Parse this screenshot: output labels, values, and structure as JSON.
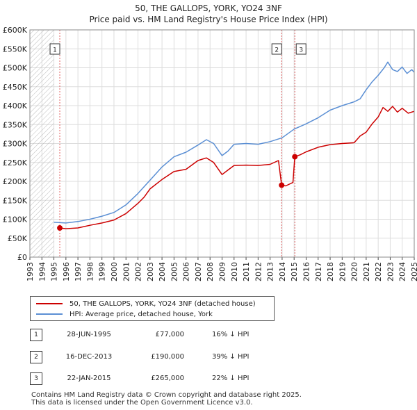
{
  "chart_data": {
    "type": "line",
    "title": "50, THE GALLOPS, YORK, YO24 3NF",
    "subtitle": "Price paid vs. HM Land Registry's House Price Index (HPI)",
    "xlim": [
      1993,
      2025
    ],
    "ylim": [
      0,
      600000
    ],
    "x_ticks": [
      1993,
      1994,
      1995,
      1996,
      1997,
      1998,
      1999,
      2000,
      2001,
      2002,
      2003,
      2004,
      2005,
      2006,
      2007,
      2008,
      2009,
      2010,
      2011,
      2012,
      2013,
      2014,
      2015,
      2016,
      2017,
      2018,
      2019,
      2020,
      2021,
      2022,
      2023,
      2024,
      2025
    ],
    "y_ticks": [
      0,
      50000,
      100000,
      150000,
      200000,
      250000,
      300000,
      350000,
      400000,
      450000,
      500000,
      550000,
      600000
    ],
    "y_tick_labels": [
      "£0",
      "£50K",
      "£100K",
      "£150K",
      "£200K",
      "£250K",
      "£300K",
      "£350K",
      "£400K",
      "£450K",
      "£500K",
      "£550K",
      "£600K"
    ],
    "series": [
      {
        "name": "50, THE GALLOPS, YORK, YO24 3NF (detached house)",
        "color": "#cc0000",
        "points": [
          [
            1995.49,
            77000
          ],
          [
            1996.0,
            75000
          ],
          [
            1997.0,
            77000
          ],
          [
            1998.0,
            84000
          ],
          [
            1999.0,
            90000
          ],
          [
            2000.0,
            98000
          ],
          [
            2001.0,
            115000
          ],
          [
            2002.0,
            142000
          ],
          [
            2002.5,
            158000
          ],
          [
            2003.0,
            180000
          ],
          [
            2004.0,
            205000
          ],
          [
            2005.0,
            226000
          ],
          [
            2006.0,
            232000
          ],
          [
            2007.0,
            255000
          ],
          [
            2007.7,
            262000
          ],
          [
            2008.3,
            250000
          ],
          [
            2009.0,
            218000
          ],
          [
            2009.5,
            230000
          ],
          [
            2010.0,
            242000
          ],
          [
            2011.0,
            243000
          ],
          [
            2012.0,
            242000
          ],
          [
            2013.0,
            245000
          ],
          [
            2013.7,
            255000
          ],
          [
            2013.96,
            190000
          ],
          [
            2014.3,
            188000
          ],
          [
            2014.9,
            197000
          ],
          [
            2015.06,
            265000
          ],
          [
            2015.5,
            270000
          ],
          [
            2016.0,
            278000
          ],
          [
            2017.0,
            290000
          ],
          [
            2018.0,
            297000
          ],
          [
            2019.0,
            300000
          ],
          [
            2020.0,
            302000
          ],
          [
            2020.5,
            320000
          ],
          [
            2021.0,
            330000
          ],
          [
            2021.5,
            352000
          ],
          [
            2022.0,
            370000
          ],
          [
            2022.4,
            395000
          ],
          [
            2022.8,
            385000
          ],
          [
            2023.2,
            398000
          ],
          [
            2023.6,
            383000
          ],
          [
            2024.0,
            393000
          ],
          [
            2024.5,
            380000
          ],
          [
            2025.0,
            385000
          ]
        ]
      },
      {
        "name": "HPI: Average price, detached house, York",
        "color": "#5b8fd4",
        "points": [
          [
            1995.0,
            92000
          ],
          [
            1996.0,
            90000
          ],
          [
            1997.0,
            94000
          ],
          [
            1998.0,
            100000
          ],
          [
            1999.0,
            108000
          ],
          [
            2000.0,
            118000
          ],
          [
            2001.0,
            138000
          ],
          [
            2002.0,
            168000
          ],
          [
            2003.0,
            203000
          ],
          [
            2004.0,
            238000
          ],
          [
            2005.0,
            265000
          ],
          [
            2006.0,
            277000
          ],
          [
            2007.0,
            296000
          ],
          [
            2007.7,
            310000
          ],
          [
            2008.3,
            300000
          ],
          [
            2009.0,
            268000
          ],
          [
            2009.5,
            280000
          ],
          [
            2010.0,
            298000
          ],
          [
            2011.0,
            300000
          ],
          [
            2012.0,
            298000
          ],
          [
            2013.0,
            305000
          ],
          [
            2014.0,
            315000
          ],
          [
            2015.0,
            338000
          ],
          [
            2016.0,
            352000
          ],
          [
            2017.0,
            368000
          ],
          [
            2018.0,
            388000
          ],
          [
            2019.0,
            400000
          ],
          [
            2020.0,
            410000
          ],
          [
            2020.5,
            418000
          ],
          [
            2021.0,
            442000
          ],
          [
            2021.5,
            463000
          ],
          [
            2022.0,
            480000
          ],
          [
            2022.5,
            500000
          ],
          [
            2022.8,
            515000
          ],
          [
            2023.2,
            495000
          ],
          [
            2023.6,
            490000
          ],
          [
            2024.0,
            502000
          ],
          [
            2024.4,
            485000
          ],
          [
            2024.8,
            495000
          ],
          [
            2025.0,
            488000
          ]
        ]
      }
    ],
    "transactions": [
      {
        "label": "1",
        "x": 1995.49,
        "value": 77000
      },
      {
        "label": "2",
        "x": 2013.96,
        "value": 190000
      },
      {
        "label": "3",
        "x": 2015.06,
        "value": 265000
      }
    ],
    "hatched_region_x": [
      1993,
      1995.0
    ],
    "vlines_x": [
      1995.49,
      2013.96,
      2015.06
    ]
  },
  "legend": {
    "items": [
      {
        "label": "50, THE GALLOPS, YORK, YO24 3NF (detached house)",
        "color": "#cc0000"
      },
      {
        "label": "HPI: Average price, detached house, York",
        "color": "#5b8fd4"
      }
    ]
  },
  "table": {
    "rows": [
      {
        "num": "1",
        "date": "28-JUN-1995",
        "price": "£77,000",
        "hpi": "16% ↓ HPI"
      },
      {
        "num": "2",
        "date": "16-DEC-2013",
        "price": "£190,000",
        "hpi": "39% ↓ HPI"
      },
      {
        "num": "3",
        "date": "22-JAN-2015",
        "price": "£265,000",
        "hpi": "22% ↓ HPI"
      }
    ]
  },
  "footer": {
    "line1": "Contains HM Land Registry data © Crown copyright and database right 2025.",
    "line2": "This data is licensed under the Open Government Licence v3.0."
  }
}
